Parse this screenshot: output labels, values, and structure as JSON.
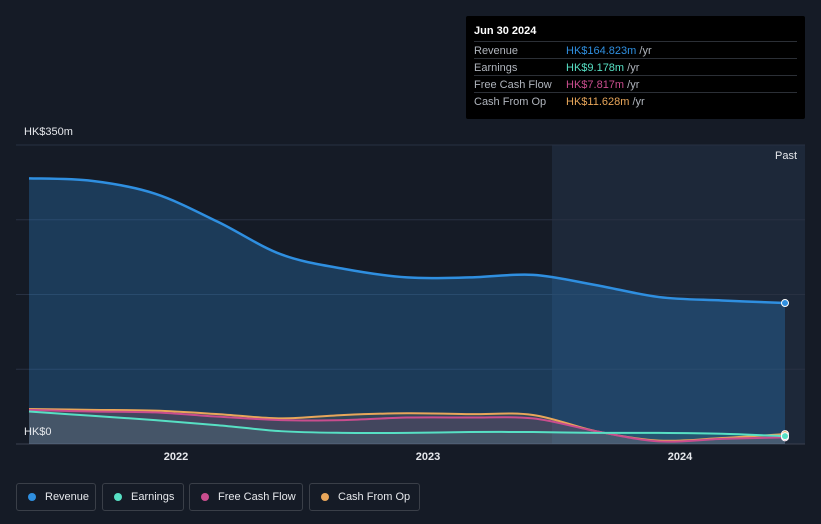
{
  "chart_data": {
    "type": "area",
    "x_ticks": [
      "2022",
      "2023",
      "2024"
    ],
    "y_axis_labels": {
      "top": "HK$350m",
      "bottom": "HK$0"
    },
    "ylim": [
      0,
      350
    ],
    "past_label": "Past",
    "series": [
      {
        "name": "Revenue",
        "color": "#2f8fe0",
        "x": [
          "2021-06",
          "2021-09",
          "2021-12",
          "2022-03",
          "2022-06",
          "2022-09",
          "2022-12",
          "2023-03",
          "2023-06",
          "2023-09",
          "2023-12",
          "2024-03",
          "2024-06"
        ],
        "values": [
          311,
          308,
          293,
          260,
          222,
          205,
          195,
          195,
          198,
          186,
          172,
          168,
          165
        ]
      },
      {
        "name": "Earnings",
        "color": "#57e0c4",
        "x": [
          "2021-06",
          "2021-09",
          "2021-12",
          "2022-03",
          "2022-06",
          "2022-09",
          "2022-12",
          "2023-03",
          "2023-06",
          "2023-09",
          "2023-12",
          "2024-03",
          "2024-06"
        ],
        "values": [
          38,
          33,
          28,
          22,
          15,
          13,
          13,
          14,
          14,
          13,
          13,
          12,
          9.178
        ]
      },
      {
        "name": "Free Cash Flow",
        "color": "#c94d8e",
        "x": [
          "2021-06",
          "2021-09",
          "2021-12",
          "2022-03",
          "2022-06",
          "2022-09",
          "2022-12",
          "2023-03",
          "2023-06",
          "2023-09",
          "2023-12",
          "2024-03",
          "2024-06"
        ],
        "values": [
          40,
          38,
          37,
          32,
          28,
          28,
          31,
          31,
          30,
          15,
          3,
          6,
          7.817
        ]
      },
      {
        "name": "Cash From Op",
        "color": "#e8a65a",
        "x": [
          "2021-06",
          "2021-09",
          "2021-12",
          "2022-03",
          "2022-06",
          "2022-09",
          "2022-12",
          "2023-03",
          "2023-06",
          "2023-09",
          "2023-12",
          "2024-03",
          "2024-06"
        ],
        "values": [
          41,
          40,
          39,
          35,
          30,
          34,
          36,
          35,
          34,
          15,
          4,
          7,
          11.628
        ]
      }
    ],
    "grid": true,
    "legend_placement": "bottom-left"
  },
  "tooltip": {
    "date": "Jun 30 2024",
    "rows": [
      {
        "label": "Revenue",
        "value": "HK$164.823m",
        "unit": "/yr",
        "color": "#2f8fe0"
      },
      {
        "label": "Earnings",
        "value": "HK$9.178m",
        "unit": "/yr",
        "color": "#57e0c4"
      },
      {
        "label": "Free Cash Flow",
        "value": "HK$7.817m",
        "unit": "/yr",
        "color": "#c94d8e"
      },
      {
        "label": "Cash From Op",
        "value": "HK$11.628m",
        "unit": "/yr",
        "color": "#e8a65a"
      }
    ]
  },
  "legend": [
    {
      "label": "Revenue",
      "color": "#2f8fe0"
    },
    {
      "label": "Earnings",
      "color": "#57e0c4"
    },
    {
      "label": "Free Cash Flow",
      "color": "#c94d8e"
    },
    {
      "label": "Cash From Op",
      "color": "#e8a65a"
    }
  ]
}
